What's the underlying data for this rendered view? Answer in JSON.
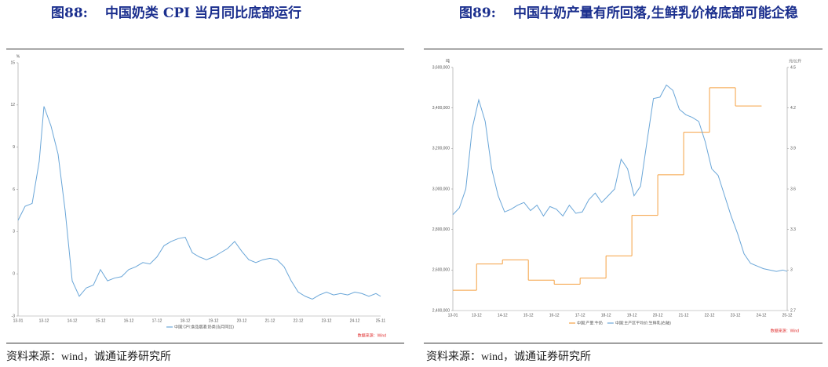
{
  "figures": [
    {
      "label": "图88:",
      "title": "中国奶类 CPI 当月同比底部运行",
      "source": "资料来源：wind，诚通证券研究所"
    },
    {
      "label": "图89:",
      "title": "中国牛奶产量有所回落,生鲜乳价格底部可能企稳",
      "source": "资料来源：wind，诚通证券研究所"
    }
  ],
  "chart_data": [
    {
      "type": "line",
      "y_label": "%",
      "source": "数据来源：Wind",
      "grid": false,
      "ylim": [
        -3,
        15
      ],
      "yticks": [
        15,
        12,
        9,
        6,
        3,
        0,
        -3
      ],
      "xticks": [
        "13-01",
        "13-12",
        "14-12",
        "15-12",
        "16-12",
        "17-12",
        "18-12",
        "19-12",
        "20-12",
        "21-12",
        "22-12",
        "23-12",
        "24-12",
        "25-11"
      ],
      "x": [
        "13-01",
        "13-04",
        "13-07",
        "13-10",
        "13-12",
        "14-03",
        "14-06",
        "14-09",
        "14-12",
        "15-03",
        "15-06",
        "15-09",
        "15-12",
        "16-03",
        "16-06",
        "16-09",
        "16-12",
        "17-03",
        "17-06",
        "17-09",
        "17-12",
        "18-03",
        "18-06",
        "18-09",
        "18-12",
        "19-03",
        "19-06",
        "19-09",
        "19-12",
        "20-03",
        "20-06",
        "20-09",
        "20-12",
        "21-03",
        "21-06",
        "21-09",
        "21-12",
        "22-03",
        "22-06",
        "22-09",
        "22-12",
        "23-03",
        "23-06",
        "23-09",
        "23-12",
        "24-03",
        "24-06",
        "24-09",
        "24-12",
        "25-03",
        "25-06",
        "25-09",
        "25-11"
      ],
      "series": [
        {
          "name": "中国:CPI:食品烟酒:奶类(当月同比)",
          "color": "#6aa6d8",
          "values": [
            3.8,
            4.8,
            5,
            8,
            11.9,
            10.5,
            8.5,
            4.5,
            -0.5,
            -1.6,
            -1,
            -0.8,
            0.3,
            -0.5,
            -0.3,
            -0.2,
            0.3,
            0.5,
            0.8,
            0.7,
            1.2,
            2,
            2.3,
            2.5,
            2.6,
            1.5,
            1.2,
            1,
            1.2,
            1.5,
            1.8,
            2.3,
            1.6,
            1,
            0.8,
            1,
            1.1,
            1,
            0.5,
            -0.5,
            -1.3,
            -1.6,
            -1.8,
            -1.5,
            -1.3,
            -1.5,
            -1.4,
            -1.5,
            -1.3,
            -1.4,
            -1.6,
            -1.4,
            -1.6
          ]
        }
      ]
    },
    {
      "type": "line",
      "y_label": "吨",
      "y2_label": "元/公斤",
      "source": "数据来源：Wind",
      "grid": false,
      "ylim": [
        2400000,
        3600000
      ],
      "yticks": [
        {
          "value": 3600000,
          "label": "3,600,000"
        },
        {
          "value": 3400000,
          "label": "3,400,000"
        },
        {
          "value": 3200000,
          "label": "3,200,000"
        },
        {
          "value": 3000000,
          "label": "3,000,000"
        },
        {
          "value": 2800000,
          "label": "2,800,000"
        },
        {
          "value": 2600000,
          "label": "2,600,000"
        },
        {
          "value": 2400000,
          "label": "2,400,000"
        }
      ],
      "y2lim": [
        2.7,
        4.5
      ],
      "y2ticks": [
        4.5,
        4.2,
        3.9,
        3.6,
        3.3,
        3,
        2.7
      ],
      "xticks": [
        "13-01",
        "13-12",
        "14-12",
        "15-12",
        "16-12",
        "17-12",
        "18-12",
        "19-12",
        "20-12",
        "21-12",
        "22-12",
        "23-12",
        "24-12",
        "25-12"
      ],
      "series": [
        {
          "name": "中国:产量:牛奶",
          "color": "#f5a142",
          "shape": "step",
          "x": [
            "13-01",
            "13-12",
            "14-12",
            "15-12",
            "16-12",
            "17-12",
            "18-12",
            "19-12",
            "20-12",
            "21-12",
            "22-12",
            "23-12",
            "24-12"
          ],
          "values": [
            2500000,
            2630000,
            2650000,
            2550000,
            2530000,
            2560000,
            2670000,
            2870000,
            3070000,
            3280000,
            3500000,
            3410000,
            3410000
          ]
        },
        {
          "name": "中国:主产区平均价:生鲜乳(右轴)",
          "color": "#6aa6d8",
          "axis": "y2",
          "x": [
            "13-01",
            "13-04",
            "13-07",
            "13-10",
            "14-01",
            "14-04",
            "14-07",
            "14-10",
            "15-01",
            "15-04",
            "15-07",
            "15-10",
            "16-01",
            "16-04",
            "16-07",
            "16-10",
            "17-01",
            "17-04",
            "17-07",
            "17-10",
            "18-01",
            "18-04",
            "18-07",
            "18-10",
            "19-01",
            "19-04",
            "19-07",
            "19-10",
            "20-01",
            "20-04",
            "20-07",
            "20-10",
            "21-01",
            "21-04",
            "21-07",
            "21-10",
            "22-01",
            "22-04",
            "22-07",
            "22-10",
            "23-01",
            "23-04",
            "23-07",
            "23-10",
            "24-01",
            "24-04",
            "24-07",
            "24-10",
            "25-01",
            "25-04",
            "25-07",
            "25-10",
            "25-12"
          ],
          "values": [
            3.41,
            3.46,
            3.6,
            4.05,
            4.26,
            4.1,
            3.75,
            3.55,
            3.43,
            3.45,
            3.48,
            3.5,
            3.44,
            3.48,
            3.4,
            3.47,
            3.45,
            3.4,
            3.48,
            3.42,
            3.43,
            3.52,
            3.57,
            3.5,
            3.55,
            3.6,
            3.82,
            3.75,
            3.55,
            3.62,
            3.95,
            4.27,
            4.28,
            4.37,
            4.33,
            4.19,
            4.15,
            4.13,
            4.1,
            3.95,
            3.75,
            3.7,
            3.55,
            3.4,
            3.27,
            3.12,
            3.05,
            3.03,
            3.01,
            3,
            2.99,
            3,
            2.99
          ]
        }
      ]
    }
  ]
}
